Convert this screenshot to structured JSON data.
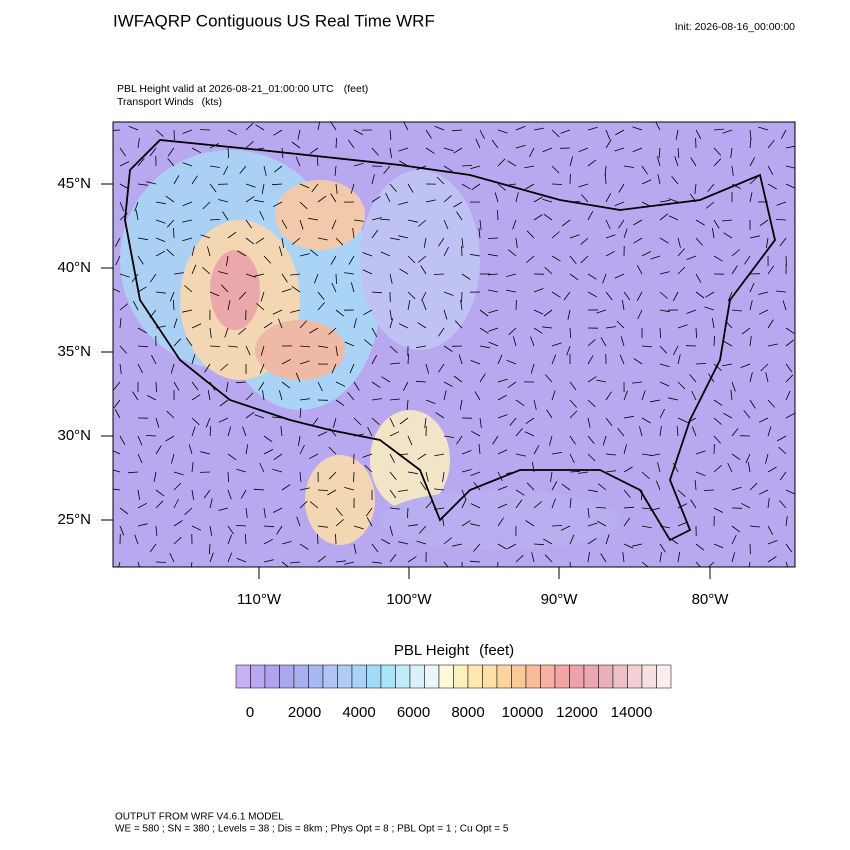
{
  "header": {
    "title": "IWFAQRP Contiguous US Real Time WRF",
    "init": "Init: 2026-08-16_00:00:00"
  },
  "field": {
    "title": "PBL Height valid at 2026-08-21_01:00:00 UTC",
    "units": "(feet)"
  },
  "overlay": {
    "title": "Transport Winds",
    "units": "(kts)"
  },
  "lat_labels": [
    "45°N",
    "40°N",
    "35°N",
    "30°N",
    "25°N"
  ],
  "lon_labels": [
    "110°W",
    "100°W",
    "90°W",
    "80°W"
  ],
  "colorbar": {
    "title": "PBL Height",
    "units": "(feet)",
    "labels": [
      "0",
      "2000",
      "4000",
      "6000",
      "8000",
      "10000",
      "12000",
      "14000"
    ],
    "colors": [
      "#c8b0f5",
      "#bba8f2",
      "#b0a4f0",
      "#a8a8f0",
      "#a8b0f0",
      "#a8b8f2",
      "#b0c4f5",
      "#b0ccf5",
      "#a8d4f8",
      "#a0dcf8",
      "#a8e4fa",
      "#c0ecfa",
      "#d8f2fa",
      "#eaf6fa",
      "#fdf8d8",
      "#fdf0c0",
      "#fde8b0",
      "#fde0a8",
      "#fdd4a0",
      "#fbc898",
      "#f8bc98",
      "#f8b0a0",
      "#f5a4a4",
      "#f0a0a8",
      "#eaa8b0",
      "#e8b0b8",
      "#ecc0c6",
      "#f2d0d4",
      "#f8e0e2",
      "#fcecec"
    ]
  },
  "footer": [
    "OUTPUT FROM WRF V4.6.1 MODEL",
    "WE = 580 ; SN = 380 ; Levels = 38 ; Dis = 8km ; Phys Opt = 8 ; PBL Opt = 1 ; Cu Opt = 5"
  ]
}
